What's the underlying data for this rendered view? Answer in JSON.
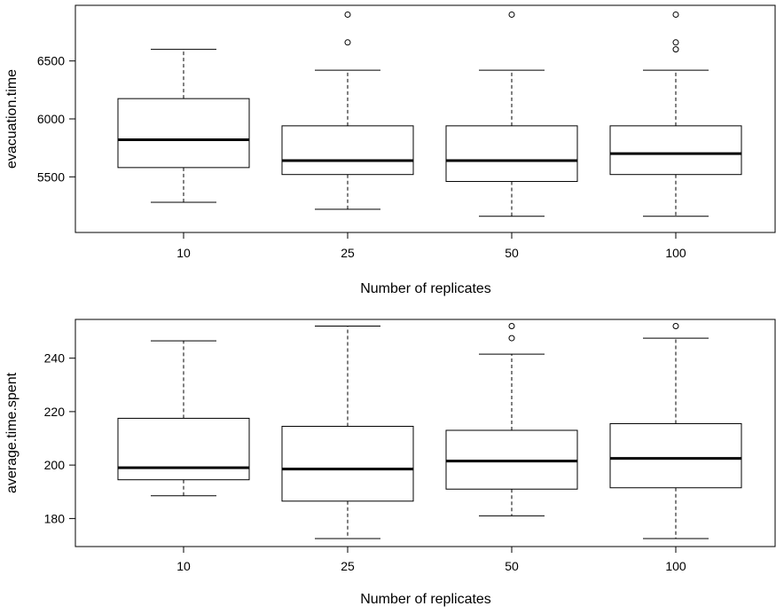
{
  "chart_data": [
    {
      "type": "box",
      "title": "",
      "xlabel": "Number of replicates",
      "ylabel": "evacuation.time",
      "ylim": [
        5020,
        6980
      ],
      "yticks": [
        5500,
        6000,
        6500
      ],
      "categories": [
        "10",
        "25",
        "50",
        "100"
      ],
      "boxes": [
        {
          "category": "10",
          "whisker_low": 5280,
          "q1": 5580,
          "median": 5820,
          "q3": 6175,
          "whisker_high": 6600,
          "outliers": []
        },
        {
          "category": "25",
          "whisker_low": 5220,
          "q1": 5520,
          "median": 5640,
          "q3": 5940,
          "whisker_high": 6420,
          "outliers": [
            6660,
            6900
          ]
        },
        {
          "category": "50",
          "whisker_low": 5160,
          "q1": 5460,
          "median": 5640,
          "q3": 5940,
          "whisker_high": 6420,
          "outliers": [
            6900
          ]
        },
        {
          "category": "100",
          "whisker_low": 5160,
          "q1": 5520,
          "median": 5700,
          "q3": 5940,
          "whisker_high": 6420,
          "outliers": [
            6600,
            6660,
            6900
          ]
        }
      ]
    },
    {
      "type": "box",
      "title": "",
      "xlabel": "Number of replicates",
      "ylabel": "average.time.spent",
      "ylim": [
        169.5,
        254.5
      ],
      "yticks": [
        180,
        200,
        220,
        240
      ],
      "categories": [
        "10",
        "25",
        "50",
        "100"
      ],
      "boxes": [
        {
          "category": "10",
          "whisker_low": 188.5,
          "q1": 194.5,
          "median": 199,
          "q3": 217.5,
          "whisker_high": 246.5,
          "outliers": []
        },
        {
          "category": "25",
          "whisker_low": 172.5,
          "q1": 186.5,
          "median": 198.5,
          "q3": 214.5,
          "whisker_high": 252,
          "outliers": []
        },
        {
          "category": "50",
          "whisker_low": 181,
          "q1": 191,
          "median": 201.5,
          "q3": 213,
          "whisker_high": 241.5,
          "outliers": [
            247.5,
            252
          ]
        },
        {
          "category": "100",
          "whisker_low": 172.5,
          "q1": 191.5,
          "median": 202.5,
          "q3": 215.5,
          "whisker_high": 247.5,
          "outliers": [
            252
          ]
        }
      ]
    }
  ]
}
